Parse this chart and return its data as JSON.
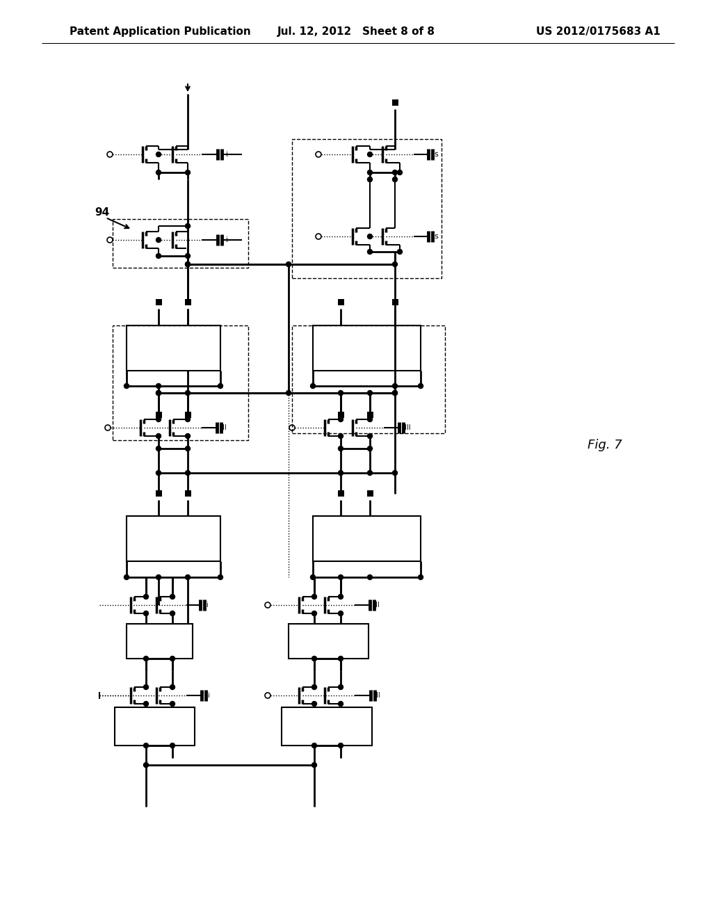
{
  "header_left": "Patent Application Publication",
  "header_center": "Jul. 12, 2012   Sheet 8 of 8",
  "header_right": "US 2012/0175683 A1",
  "fig_label": "Fig. 7",
  "annotation_94": "94",
  "background_color": "#ffffff",
  "header_fontsize": 11,
  "fig_label_fontsize": 13
}
